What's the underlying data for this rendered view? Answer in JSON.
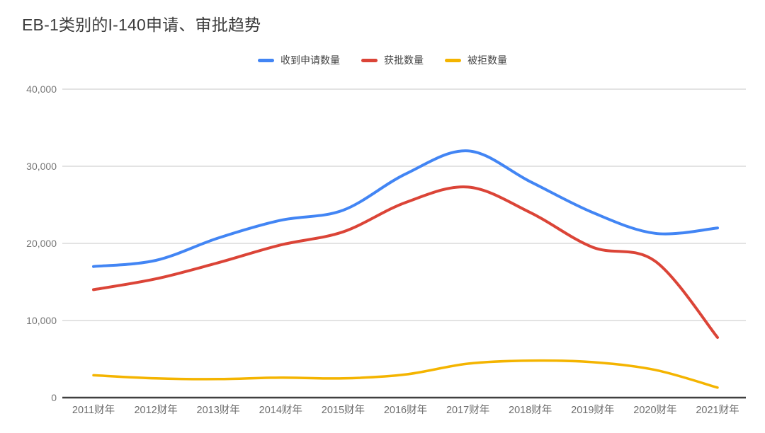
{
  "chart_data": {
    "type": "line",
    "title": "EB-1类别的I-140申请、审批趋势",
    "categories": [
      "2011财年",
      "2012财年",
      "2013财年",
      "2014财年",
      "2015财年",
      "2016财年",
      "2017财年",
      "2018财年",
      "2019财年",
      "2020财年",
      "2021财年"
    ],
    "series": [
      {
        "name": "收到申请数量",
        "color": "#4285f4",
        "values": [
          17000,
          17800,
          20700,
          23000,
          24300,
          29000,
          32000,
          28000,
          24000,
          21300,
          22000
        ]
      },
      {
        "name": "获批数量",
        "color": "#db4437",
        "values": [
          14000,
          15400,
          17500,
          19800,
          21500,
          25300,
          27300,
          24000,
          19500,
          17700,
          7800
        ]
      },
      {
        "name": "被拒数量",
        "color": "#f4b400",
        "values": [
          2900,
          2500,
          2400,
          2600,
          2500,
          3000,
          4400,
          4800,
          4600,
          3600,
          1300
        ]
      }
    ],
    "xlabel": "",
    "ylabel": "",
    "ylim": [
      0,
      40000
    ],
    "yticks": [
      0,
      10000,
      20000,
      30000,
      40000
    ],
    "ytick_labels": [
      "0",
      "10,000",
      "20,000",
      "30,000",
      "40,000"
    ],
    "grid": true,
    "legend_position": "top",
    "line_smoothing": true
  },
  "style": {
    "background": "#ffffff",
    "grid_color": "#e3e3e3",
    "axis_color": "#3f3f3f",
    "tick_label_color": "#757575",
    "legend_text_color": "#424242",
    "title_color": "#3c3c3c"
  }
}
